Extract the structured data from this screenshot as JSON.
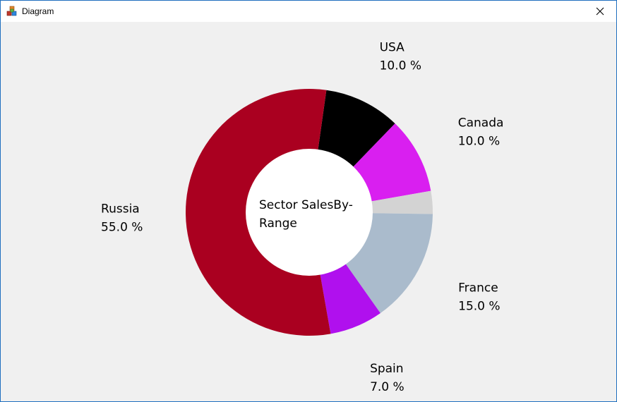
{
  "window": {
    "title": "Diagram",
    "app_icon": "cubes-icon",
    "close_icon": "close-icon"
  },
  "chart_data": {
    "type": "pie",
    "style": "donut",
    "center_text_lines": [
      "Sector SalesBy-",
      "Range"
    ],
    "slices": [
      {
        "label": "USA",
        "value": 10.0,
        "value_text": "10.0 %",
        "color": "#000000"
      },
      {
        "label": "Canada",
        "value": 10.0,
        "value_text": "10.0 %",
        "color": "#d91ff0"
      },
      {
        "label": "",
        "value": 3.0,
        "value_text": "",
        "color": "#d3d3d3"
      },
      {
        "label": "France",
        "value": 15.0,
        "value_text": "15.0 %",
        "color": "#aabbcc"
      },
      {
        "label": "Spain",
        "value": 7.0,
        "value_text": "7.0 %",
        "color": "#b010ee"
      },
      {
        "label": "Russia",
        "value": 55.0,
        "value_text": "55.0 %",
        "color": "#aa0020"
      }
    ]
  }
}
